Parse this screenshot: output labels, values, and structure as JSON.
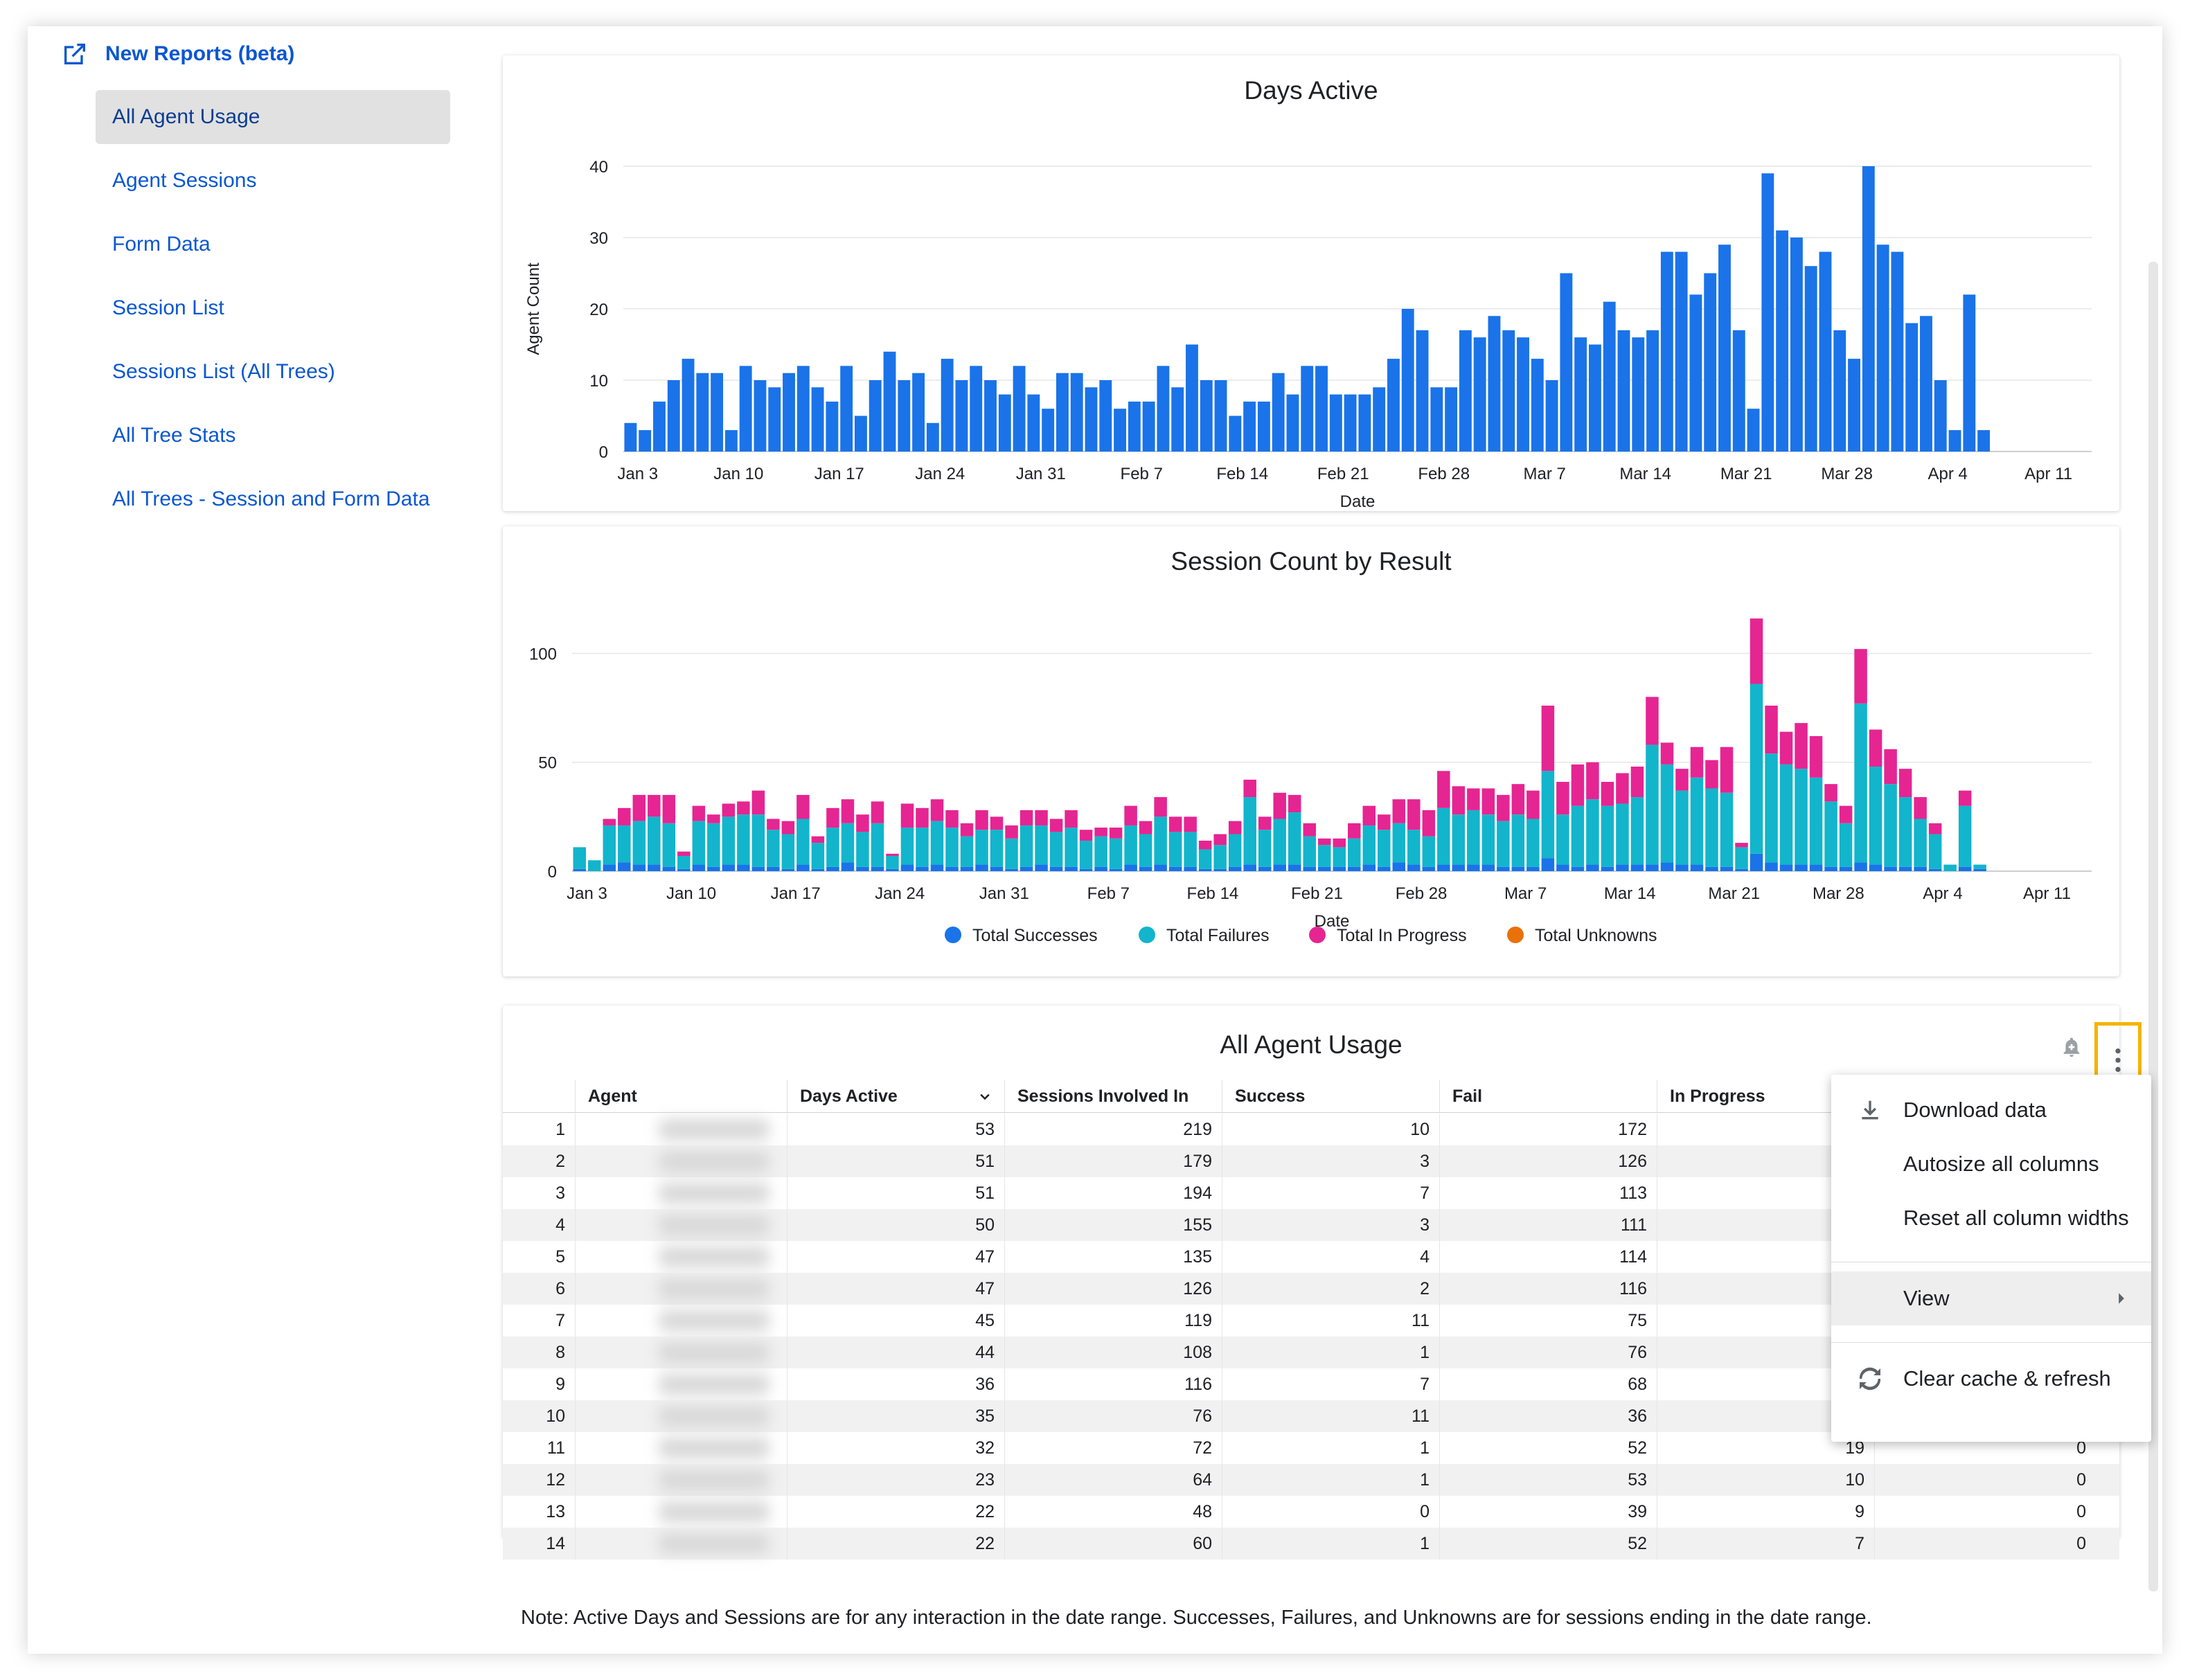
{
  "sidebar": {
    "header": "New Reports (beta)",
    "items": [
      {
        "label": "All Agent Usage",
        "active": true
      },
      {
        "label": "Agent Sessions"
      },
      {
        "label": "Form Data"
      },
      {
        "label": "Session List"
      },
      {
        "label": "Sessions List (All Trees)"
      },
      {
        "label": "All Tree Stats"
      },
      {
        "label": "All Trees - Session and Form Data"
      }
    ]
  },
  "colors": {
    "bar_blue": "#1a73e8",
    "successes": "#1a73e8",
    "failures": "#12b5cb",
    "in_progress": "#e52592",
    "unknowns": "#e8710a",
    "link": "#0b57d0"
  },
  "chart_data": [
    {
      "type": "bar",
      "title": "Days Active",
      "xlabel": "Date",
      "ylabel": "Agent Count",
      "ylim": [
        0,
        40
      ],
      "yticks": [
        "0",
        "10",
        "20",
        "30",
        "40"
      ],
      "xticks": [
        "Jan 3",
        "Jan 10",
        "Jan 17",
        "Jan 24",
        "Jan 31",
        "Feb 7",
        "Feb 14",
        "Feb 21",
        "Feb 28",
        "Mar 7",
        "Mar 14",
        "Mar 21",
        "Mar 28",
        "Apr 4",
        "Apr 11"
      ],
      "x_start": "Jan 2",
      "x_end": "Apr 14",
      "values": [
        4,
        3,
        7,
        10,
        13,
        11,
        11,
        3,
        12,
        10,
        9,
        11,
        12,
        9,
        7,
        12,
        5,
        10,
        14,
        10,
        11,
        4,
        13,
        10,
        12,
        10,
        8,
        12,
        8,
        6,
        11,
        11,
        9,
        10,
        6,
        7,
        7,
        12,
        9,
        15,
        10,
        10,
        5,
        7,
        7,
        11,
        8,
        12,
        12,
        8,
        8,
        8,
        9,
        13,
        20,
        17,
        9,
        9,
        17,
        16,
        19,
        17,
        16,
        13,
        10,
        25,
        16,
        15,
        21,
        17,
        16,
        17,
        28,
        28,
        22,
        25,
        29,
        17,
        6,
        39,
        31,
        30,
        26,
        28,
        17,
        13,
        40,
        29,
        28,
        18,
        19,
        10,
        3,
        22,
        3
      ]
    },
    {
      "type": "bar",
      "stacked": true,
      "title": "Session Count by Result",
      "xlabel": "Date",
      "ylim": [
        0,
        110
      ],
      "yticks": [
        "0",
        "50",
        "100"
      ],
      "xticks": [
        "Jan 3",
        "Jan 10",
        "Jan 17",
        "Jan 24",
        "Jan 31",
        "Feb 7",
        "Feb 14",
        "Feb 21",
        "Feb 28",
        "Mar 7",
        "Mar 14",
        "Mar 21",
        "Mar 28",
        "Apr 4",
        "Apr 11"
      ],
      "x_start": "Jan 2",
      "x_end": "Apr 14",
      "legend_position": "bottom",
      "series": [
        {
          "name": "Total Successes",
          "values": [
            1,
            0,
            3,
            4,
            3,
            3,
            2,
            1,
            3,
            2,
            3,
            3,
            2,
            2,
            1,
            3,
            1,
            2,
            4,
            2,
            2,
            1,
            3,
            2,
            3,
            2,
            2,
            3,
            2,
            1,
            2,
            3,
            2,
            2,
            1,
            2,
            1,
            3,
            2,
            3,
            2,
            2,
            1,
            1,
            2,
            3,
            2,
            3,
            3,
            2,
            2,
            2,
            2,
            3,
            2,
            4,
            3,
            2,
            3,
            3,
            3,
            3,
            2,
            2,
            2,
            6,
            3,
            2,
            3,
            2,
            3,
            3,
            3,
            4,
            3,
            3,
            2,
            2,
            1,
            8,
            4,
            3,
            3,
            3,
            2,
            2,
            4,
            3,
            2,
            2,
            2,
            1,
            0,
            2,
            1
          ]
        },
        {
          "name": "Total Failures",
          "values": [
            10,
            5,
            18,
            17,
            20,
            22,
            20,
            6,
            20,
            20,
            22,
            23,
            24,
            17,
            16,
            21,
            12,
            18,
            18,
            16,
            20,
            6,
            17,
            18,
            20,
            18,
            14,
            16,
            17,
            14,
            19,
            18,
            16,
            18,
            13,
            14,
            14,
            18,
            15,
            22,
            16,
            16,
            9,
            11,
            15,
            31,
            17,
            21,
            24,
            14,
            10,
            9,
            13,
            18,
            17,
            18,
            16,
            14,
            26,
            23,
            25,
            23,
            21,
            24,
            22,
            40,
            23,
            28,
            30,
            28,
            28,
            31,
            55,
            45,
            34,
            40,
            36,
            34,
            10,
            78,
            50,
            46,
            44,
            40,
            30,
            20,
            73,
            45,
            38,
            32,
            22,
            16,
            3,
            28,
            2
          ]
        },
        {
          "name": "Total In Progress",
          "values": [
            0,
            0,
            3,
            8,
            12,
            10,
            13,
            2,
            7,
            4,
            6,
            6,
            11,
            5,
            6,
            11,
            3,
            9,
            11,
            8,
            10,
            1,
            11,
            9,
            10,
            8,
            6,
            9,
            6,
            6,
            7,
            7,
            6,
            8,
            5,
            4,
            5,
            9,
            6,
            9,
            7,
            7,
            4,
            5,
            6,
            8,
            6,
            12,
            8,
            6,
            3,
            4,
            7,
            9,
            7,
            11,
            14,
            12,
            17,
            13,
            10,
            12,
            12,
            14,
            13,
            30,
            15,
            19,
            17,
            11,
            14,
            14,
            22,
            10,
            10,
            14,
            13,
            21,
            2,
            30,
            22,
            15,
            21,
            19,
            8,
            8,
            25,
            17,
            16,
            13,
            10,
            5,
            0,
            7,
            0
          ]
        },
        {
          "name": "Total Unknowns",
          "values": [
            0,
            0,
            0,
            0,
            0,
            0,
            0,
            0,
            0,
            0,
            0,
            0,
            0,
            0,
            0,
            0,
            0,
            0,
            0,
            0,
            0,
            0,
            0,
            0,
            0,
            0,
            0,
            0,
            0,
            0,
            0,
            0,
            0,
            0,
            0,
            0,
            0,
            0,
            0,
            0,
            0,
            0,
            0,
            0,
            0,
            0,
            0,
            0,
            0,
            0,
            0,
            0,
            0,
            0,
            0,
            0,
            0,
            0,
            0,
            0,
            0,
            0,
            0,
            0,
            0,
            0,
            0,
            0,
            0,
            0,
            0,
            0,
            0,
            0,
            0,
            0,
            0,
            0,
            0,
            0,
            0,
            0,
            0,
            0,
            0,
            0,
            0,
            0,
            0,
            0,
            0,
            0,
            0,
            0,
            0
          ]
        }
      ]
    }
  ],
  "table": {
    "title": "All Agent Usage",
    "columns": [
      "Agent",
      "Days Active",
      "Sessions Involved In",
      "Success",
      "Fail",
      "In Progress"
    ],
    "rows": [
      {
        "n": "1",
        "days": "53",
        "sessions": "219",
        "success": "10",
        "fail": "172",
        "inprog": "",
        "unk": ""
      },
      {
        "n": "2",
        "days": "51",
        "sessions": "179",
        "success": "3",
        "fail": "126",
        "inprog": "",
        "unk": ""
      },
      {
        "n": "3",
        "days": "51",
        "sessions": "194",
        "success": "7",
        "fail": "113",
        "inprog": "",
        "unk": ""
      },
      {
        "n": "4",
        "days": "50",
        "sessions": "155",
        "success": "3",
        "fail": "111",
        "inprog": "",
        "unk": ""
      },
      {
        "n": "5",
        "days": "47",
        "sessions": "135",
        "success": "4",
        "fail": "114",
        "inprog": "",
        "unk": ""
      },
      {
        "n": "6",
        "days": "47",
        "sessions": "126",
        "success": "2",
        "fail": "116",
        "inprog": "",
        "unk": ""
      },
      {
        "n": "7",
        "days": "45",
        "sessions": "119",
        "success": "11",
        "fail": "75",
        "inprog": "",
        "unk": ""
      },
      {
        "n": "8",
        "days": "44",
        "sessions": "108",
        "success": "1",
        "fail": "76",
        "inprog": "",
        "unk": ""
      },
      {
        "n": "9",
        "days": "36",
        "sessions": "116",
        "success": "7",
        "fail": "68",
        "inprog": "",
        "unk": ""
      },
      {
        "n": "10",
        "days": "35",
        "sessions": "76",
        "success": "11",
        "fail": "36",
        "inprog": "",
        "unk": ""
      },
      {
        "n": "11",
        "days": "32",
        "sessions": "72",
        "success": "1",
        "fail": "52",
        "inprog": "19",
        "unk": "0"
      },
      {
        "n": "12",
        "days": "23",
        "sessions": "64",
        "success": "1",
        "fail": "53",
        "inprog": "10",
        "unk": "0"
      },
      {
        "n": "13",
        "days": "22",
        "sessions": "48",
        "success": "0",
        "fail": "39",
        "inprog": "9",
        "unk": "0"
      },
      {
        "n": "14",
        "days": "22",
        "sessions": "60",
        "success": "1",
        "fail": "52",
        "inprog": "7",
        "unk": "0"
      }
    ]
  },
  "menu": {
    "items": [
      "Download data",
      "Autosize all columns",
      "Reset all column widths",
      "View",
      "Clear cache & refresh"
    ]
  },
  "note": "Note: Active Days and Sessions are for any interaction in the date range. Successes, Failures, and Unknowns are for sessions ending in the date range."
}
